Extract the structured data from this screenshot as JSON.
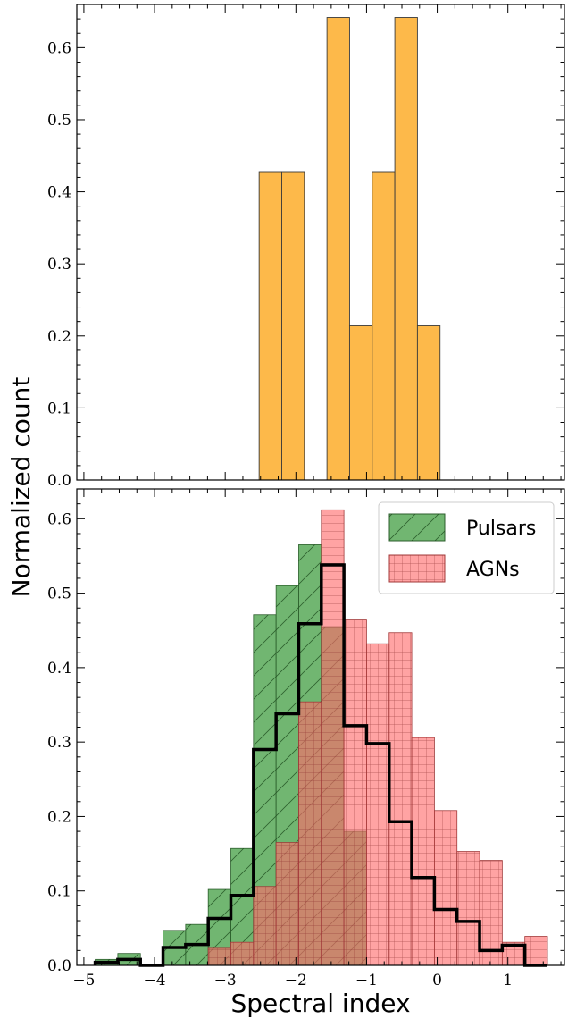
{
  "chart_data": [
    {
      "type": "bar",
      "panel": "top",
      "xlim": [
        -5.1,
        1.8
      ],
      "ylim": [
        0,
        0.66
      ],
      "yticks": [
        0.0,
        0.1,
        0.2,
        0.3,
        0.4,
        0.5,
        0.6
      ],
      "ytick_labels": [
        "0.0",
        "0.1",
        "0.2",
        "0.3",
        "0.4",
        "0.5",
        "0.6"
      ],
      "bin_width": 0.32,
      "series": [
        {
          "color": "#FDB94A",
          "bins": [
            {
              "x0": -2.52,
              "value": 0.428
            },
            {
              "x0": -2.2,
              "value": 0.428
            },
            {
              "x0": -1.56,
              "value": 0.642
            },
            {
              "x0": -1.24,
              "value": 0.214
            },
            {
              "x0": -0.92,
              "value": 0.428
            },
            {
              "x0": -0.6,
              "value": 0.642
            },
            {
              "x0": -0.28,
              "value": 0.214
            }
          ]
        }
      ]
    },
    {
      "type": "bar",
      "panel": "bottom",
      "xlim": [
        -5.1,
        1.8
      ],
      "ylim": [
        0,
        0.64
      ],
      "xticks": [
        -5,
        -4,
        -3,
        -2,
        -1,
        0,
        1
      ],
      "xtick_labels": [
        "−5",
        "−4",
        "−3",
        "−2",
        "−1",
        "0",
        "1"
      ],
      "yticks": [
        0.0,
        0.1,
        0.2,
        0.3,
        0.4,
        0.5,
        0.6
      ],
      "ytick_labels": [
        "0.0",
        "0.1",
        "0.2",
        "0.3",
        "0.4",
        "0.5",
        "0.6"
      ],
      "xlabel": "Spectral index",
      "ylabel": "Normalized count",
      "legend_position": "top-right",
      "bin_edges": [
        -4.84,
        -4.52,
        -4.2,
        -3.88,
        -3.56,
        -3.24,
        -2.92,
        -2.6,
        -2.28,
        -1.96,
        -1.64,
        -1.32,
        -1.0,
        -0.68,
        -0.36,
        -0.04,
        0.28,
        0.6,
        0.92,
        1.24,
        1.56
      ],
      "series": [
        {
          "name": "Pulsars",
          "color": "#3A9A3A",
          "hatch": "diagonal",
          "values": [
            0.008,
            0.016,
            0.0,
            0.047,
            0.055,
            0.102,
            0.157,
            0.471,
            0.51,
            0.565,
            0.455,
            0.18,
            0.0,
            0.0,
            0.0,
            0.0,
            0.0,
            0.0,
            0.0,
            0.0
          ]
        },
        {
          "name": "AGNs",
          "color": "#FF6B6B",
          "hatch": "grid",
          "values": [
            0.0,
            0.0,
            0.0,
            0.0,
            0.0,
            0.023,
            0.031,
            0.106,
            0.165,
            0.354,
            0.612,
            0.464,
            0.432,
            0.447,
            0.306,
            0.208,
            0.153,
            0.141,
            0.031,
            0.039
          ]
        },
        {
          "kind": "step",
          "color": "#000000",
          "values": [
            0.004,
            0.008,
            0.0,
            0.024,
            0.028,
            0.063,
            0.094,
            0.29,
            0.338,
            0.459,
            0.538,
            0.322,
            0.298,
            0.193,
            0.118,
            0.075,
            0.059,
            0.02,
            0.027,
            0.0
          ]
        }
      ]
    }
  ]
}
